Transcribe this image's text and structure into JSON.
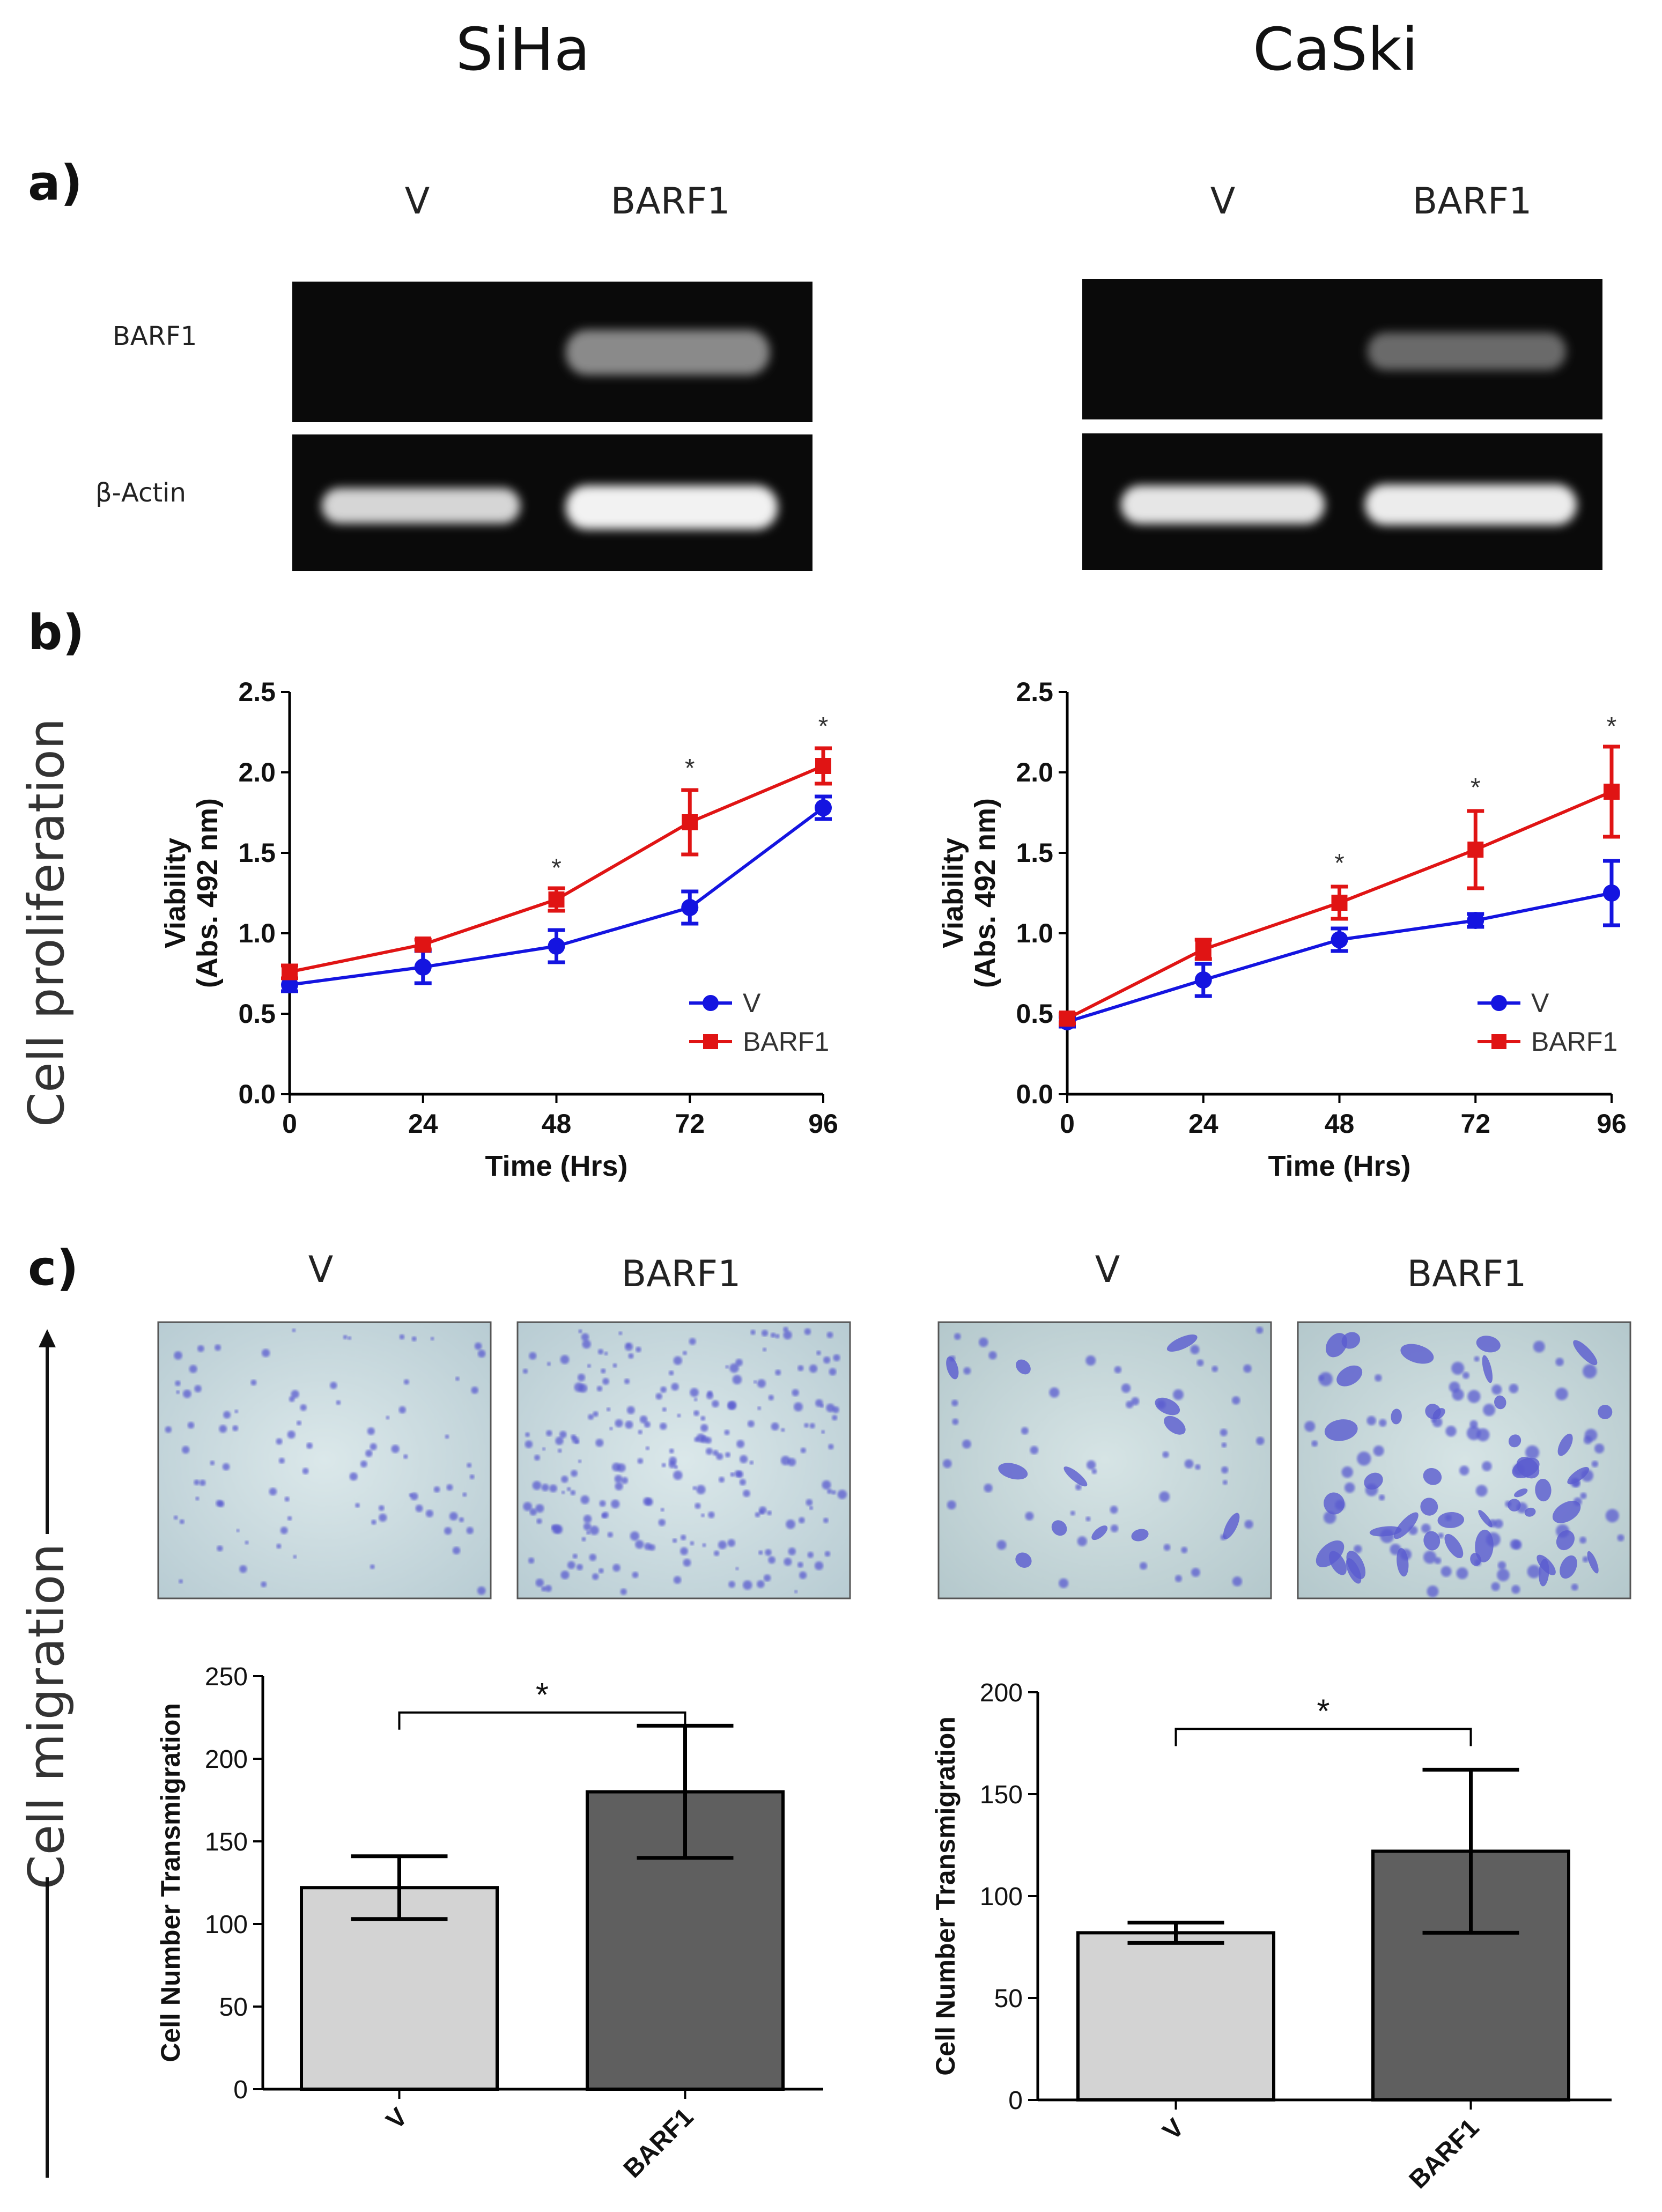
{
  "titles": {
    "left": "SiHa",
    "right": "CaSki"
  },
  "panel_labels": {
    "a": "a)",
    "b": "b)",
    "c": "c)"
  },
  "side_labels": {
    "proliferation": "Cell proliferation",
    "migration": "Cell migration"
  },
  "gel": {
    "lane_labels": [
      "V",
      "BARF1"
    ],
    "row_labels": [
      "BARF1",
      "β-Actin"
    ],
    "siha": {
      "barf1_band": [
        false,
        true
      ],
      "actin_band": [
        true,
        true
      ]
    },
    "caski": {
      "barf1_band": [
        false,
        true
      ],
      "actin_band": [
        true,
        true
      ]
    }
  },
  "micrographs": {
    "lane_labels": [
      "V",
      "BARF1"
    ],
    "stain_color": "#5a5bd0",
    "background_color": "#c9dbe0"
  },
  "colors": {
    "v": "#1414e0",
    "barf1": "#e01414",
    "bar_v": "#d3d3d3",
    "bar_barf1": "#5f5f5f"
  },
  "chart_data": [
    {
      "id": "siha-proliferation",
      "type": "line",
      "xlabel": "Time (Hrs)",
      "ylabel": [
        "Viability",
        "(Abs. 492 nm)"
      ],
      "x": [
        0,
        24,
        48,
        72,
        96
      ],
      "xlim": [
        0,
        96
      ],
      "ylim": [
        0,
        2.5
      ],
      "yticks": [
        0.0,
        0.5,
        1.0,
        1.5,
        2.0,
        2.5
      ],
      "xticks": [
        0,
        24,
        48,
        72,
        96
      ],
      "series": [
        {
          "name": "V",
          "color": "#1414e0",
          "marker": "circle",
          "values": [
            0.68,
            0.79,
            0.92,
            1.16,
            1.78
          ],
          "err": [
            0.04,
            0.1,
            0.1,
            0.1,
            0.07
          ]
        },
        {
          "name": "BARF1",
          "color": "#e01414",
          "marker": "square",
          "values": [
            0.76,
            0.93,
            1.21,
            1.69,
            2.04
          ],
          "err": [
            0.04,
            0.03,
            0.07,
            0.2,
            0.11
          ]
        }
      ],
      "annotations": [
        {
          "x": 48,
          "y": 1.42,
          "text": "*"
        },
        {
          "x": 72,
          "y": 2.04,
          "text": "*"
        },
        {
          "x": 96,
          "y": 2.3,
          "text": "*"
        }
      ],
      "legend": "bottom-right"
    },
    {
      "id": "caski-proliferation",
      "type": "line",
      "xlabel": "Time (Hrs)",
      "ylabel": [
        "Viability",
        "(Abs. 492 nm)"
      ],
      "x": [
        0,
        24,
        48,
        72,
        96
      ],
      "xlim": [
        0,
        96
      ],
      "ylim": [
        0,
        2.5
      ],
      "yticks": [
        0.0,
        0.5,
        1.0,
        1.5,
        2.0,
        2.5
      ],
      "xticks": [
        0,
        24,
        48,
        72,
        96
      ],
      "series": [
        {
          "name": "V",
          "color": "#1414e0",
          "marker": "circle",
          "values": [
            0.45,
            0.71,
            0.96,
            1.08,
            1.25
          ],
          "err": [
            0.03,
            0.1,
            0.07,
            0.04,
            0.2
          ]
        },
        {
          "name": "BARF1",
          "color": "#e01414",
          "marker": "square",
          "values": [
            0.47,
            0.9,
            1.19,
            1.52,
            1.88
          ],
          "err": [
            0.03,
            0.06,
            0.1,
            0.24,
            0.28
          ]
        }
      ],
      "annotations": [
        {
          "x": 48,
          "y": 1.45,
          "text": "*"
        },
        {
          "x": 72,
          "y": 1.92,
          "text": "*"
        },
        {
          "x": 96,
          "y": 2.3,
          "text": "*"
        }
      ],
      "legend": "bottom-right"
    },
    {
      "id": "siha-migration",
      "type": "bar",
      "categories": [
        "V",
        "BARF1"
      ],
      "values": [
        122,
        180
      ],
      "err": [
        19,
        40
      ],
      "colors": [
        "#d3d3d3",
        "#5f5f5f"
      ],
      "ylabel": "Cell Number Transmigration",
      "ylim": [
        0,
        250
      ],
      "yticks": [
        0,
        50,
        100,
        150,
        200,
        250
      ],
      "significance": {
        "between": [
          0,
          1
        ],
        "y": 228,
        "text": "*"
      }
    },
    {
      "id": "caski-migration",
      "type": "bar",
      "categories": [
        "V",
        "BARF1"
      ],
      "values": [
        82,
        122
      ],
      "err": [
        5,
        40
      ],
      "colors": [
        "#d3d3d3",
        "#5f5f5f"
      ],
      "ylabel": "Cell Number Transmigration",
      "ylim": [
        0,
        200
      ],
      "yticks": [
        0,
        50,
        100,
        150,
        200
      ],
      "significance": {
        "between": [
          0,
          1
        ],
        "y": 182,
        "text": "*"
      }
    }
  ]
}
